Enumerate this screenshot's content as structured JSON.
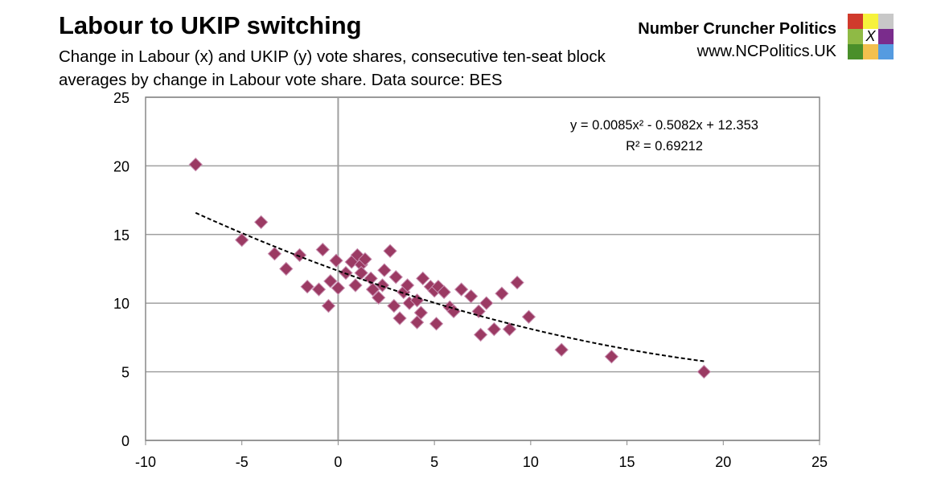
{
  "header": {
    "title": "Labour to UKIP switching",
    "subtitle": "Change in Labour (x) and UKIP (y) vote shares, consecutive ten-seat block averages by change in Labour vote share. Data source: BES"
  },
  "brand": {
    "name": "Number Cruncher Politics",
    "url": "www.NCPolitics.UK",
    "logo_mark": "X",
    "logo_colors": [
      "#d03a2c",
      "#f6f23c",
      "#c8c8c8",
      "#8fba45",
      "#ffffff",
      "#7a2c8c",
      "#4a8f2a",
      "#f2c04e",
      "#559be0"
    ]
  },
  "chart_data": {
    "type": "scatter",
    "title": "Labour to UKIP switching",
    "xlim": [
      -10,
      25
    ],
    "ylim": [
      0,
      25
    ],
    "xticks": [
      -10,
      -5,
      0,
      5,
      10,
      15,
      20,
      25
    ],
    "yticks": [
      0,
      5,
      10,
      15,
      20,
      25
    ],
    "grid": true,
    "marker_color": "#9b3a63",
    "points": [
      [
        -7.4,
        20.1
      ],
      [
        -4.0,
        15.9
      ],
      [
        -5.0,
        14.6
      ],
      [
        -3.3,
        13.6
      ],
      [
        -2.0,
        13.5
      ],
      [
        -2.7,
        12.5
      ],
      [
        -0.8,
        13.9
      ],
      [
        -1.6,
        11.2
      ],
      [
        -1.0,
        11.0
      ],
      [
        -0.5,
        9.8
      ],
      [
        -0.4,
        11.6
      ],
      [
        -0.1,
        13.1
      ],
      [
        0.0,
        11.1
      ],
      [
        0.4,
        12.2
      ],
      [
        0.7,
        13.0
      ],
      [
        1.0,
        13.5
      ],
      [
        1.2,
        12.8
      ],
      [
        1.4,
        13.2
      ],
      [
        0.9,
        11.3
      ],
      [
        1.2,
        12.2
      ],
      [
        1.7,
        11.8
      ],
      [
        1.8,
        11.0
      ],
      [
        2.1,
        10.4
      ],
      [
        2.3,
        11.3
      ],
      [
        2.4,
        12.4
      ],
      [
        2.7,
        13.8
      ],
      [
        2.9,
        9.8
      ],
      [
        3.0,
        11.9
      ],
      [
        3.2,
        8.9
      ],
      [
        3.4,
        10.8
      ],
      [
        3.6,
        11.3
      ],
      [
        3.7,
        10.0
      ],
      [
        4.1,
        10.2
      ],
      [
        4.1,
        8.6
      ],
      [
        4.3,
        9.3
      ],
      [
        4.4,
        11.8
      ],
      [
        4.8,
        11.2
      ],
      [
        5.0,
        10.9
      ],
      [
        5.2,
        11.2
      ],
      [
        5.1,
        8.5
      ],
      [
        5.5,
        10.8
      ],
      [
        5.8,
        9.7
      ],
      [
        6.0,
        9.4
      ],
      [
        6.4,
        11.0
      ],
      [
        6.9,
        10.5
      ],
      [
        7.3,
        9.4
      ],
      [
        7.4,
        7.7
      ],
      [
        7.7,
        10.0
      ],
      [
        8.1,
        8.1
      ],
      [
        8.5,
        10.7
      ],
      [
        8.9,
        8.1
      ],
      [
        9.3,
        11.5
      ],
      [
        9.9,
        9.0
      ],
      [
        11.6,
        6.6
      ],
      [
        14.2,
        6.1
      ],
      [
        19.0,
        5.0
      ]
    ],
    "trendline": {
      "type": "polynomial",
      "coefficients": [
        0.0085,
        -0.5082,
        12.353
      ],
      "x_range": [
        -7.4,
        19.0
      ],
      "equation": "y = 0.0085x² - 0.5082x + 12.353",
      "r_squared": "R² = 0.69212"
    }
  }
}
